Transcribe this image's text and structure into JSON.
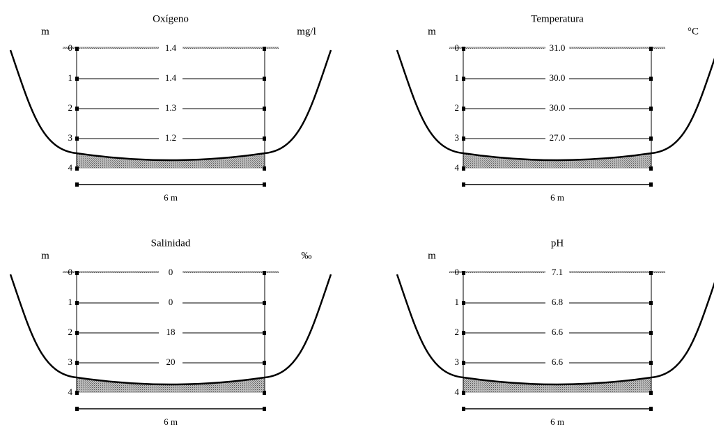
{
  "panels": [
    {
      "title": "Oxígeno",
      "depth_unit": "m",
      "unit": "mg/l",
      "depths": [
        "0",
        "1",
        "2",
        "3",
        "4"
      ],
      "values": [
        "1.4",
        "1.4",
        "1.3",
        "1.2"
      ],
      "width": "6 m"
    },
    {
      "title": "Temperatura",
      "depth_unit": "m",
      "unit": "°C",
      "depths": [
        "0",
        "1",
        "2",
        "3",
        "4"
      ],
      "values": [
        "31.0",
        "30.0",
        "30.0",
        "27.0"
      ],
      "width": "6 m"
    },
    {
      "title": "Salinidad",
      "depth_unit": "m",
      "unit": "‰",
      "depths": [
        "0",
        "1",
        "2",
        "3",
        "4"
      ],
      "values": [
        "0",
        "0",
        "18",
        "20"
      ],
      "width": "6 m"
    },
    {
      "title": "pH",
      "depth_unit": "m",
      "unit": "",
      "depths": [
        "0",
        "1",
        "2",
        "3",
        "4"
      ],
      "values": [
        "7.1",
        "6.8",
        "6.6",
        "6.6"
      ],
      "width": "6 m"
    }
  ]
}
